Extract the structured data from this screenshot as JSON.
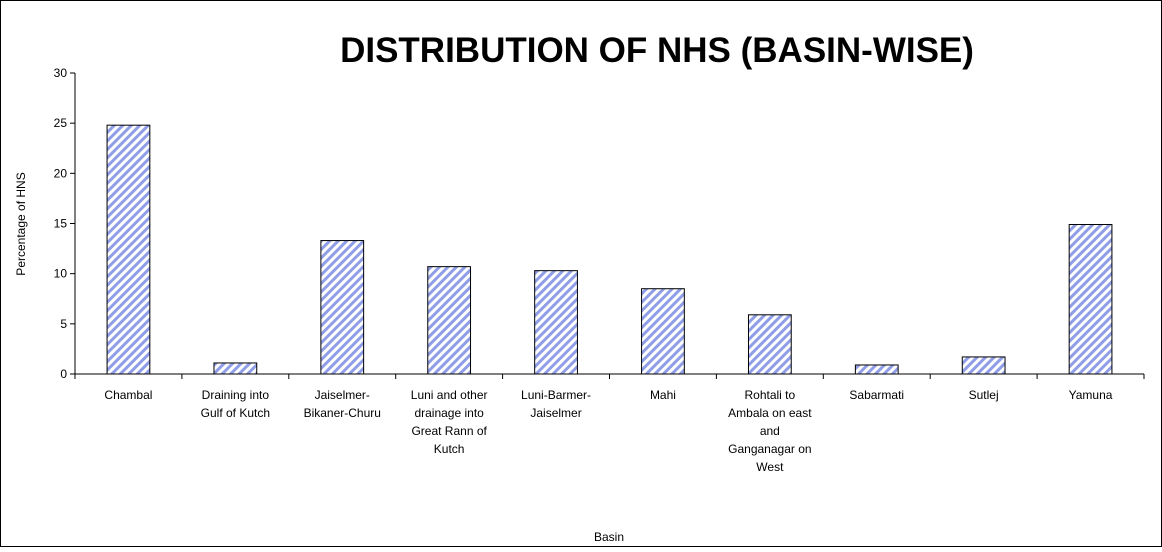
{
  "chart_data": {
    "type": "bar",
    "title": "DISTRIBUTION OF NHS (BASIN-WISE)",
    "xlabel": "Basin",
    "ylabel": "Percentage of HNS",
    "ylim": [
      0,
      30
    ],
    "yticks": [
      0,
      5,
      10,
      15,
      20,
      25,
      30
    ],
    "categories": [
      [
        "Chambal"
      ],
      [
        "Draining into",
        "Gulf of Kutch"
      ],
      [
        "Jaiselmer-",
        "Bikaner-Churu"
      ],
      [
        "Luni and other",
        "drainage into",
        "Great Rann of",
        "Kutch"
      ],
      [
        "Luni-Barmer-",
        "Jaiselmer"
      ],
      [
        "Mahi"
      ],
      [
        "Rohtali to",
        "Ambala on east",
        "and",
        "Ganganagar on",
        "West"
      ],
      [
        "Sabarmati"
      ],
      [
        "Sutlej"
      ],
      [
        "Yamuna"
      ]
    ],
    "values": [
      24.8,
      1.1,
      13.3,
      10.7,
      10.3,
      8.5,
      5.9,
      0.9,
      1.7,
      14.9
    ],
    "grid": false,
    "legend": "none",
    "colors": {
      "bar_stripe": "#8f9ee6",
      "bar_fill": "#ffffff",
      "bar_border": "#000000",
      "axis": "#000000",
      "text": "#000000"
    }
  }
}
